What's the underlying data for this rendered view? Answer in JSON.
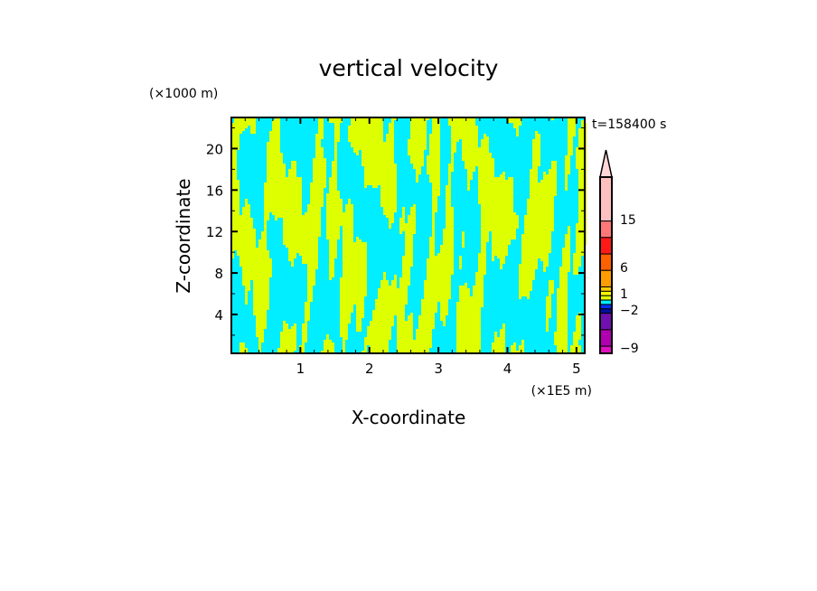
{
  "chart_data": {
    "type": "heatmap",
    "title": "vertical velocity",
    "xlabel": "X-coordinate",
    "ylabel": "Z-coordinate",
    "x_unit": "(×1E5 m)",
    "y_unit": "(×1000 m)",
    "time_label": "t=158400 s",
    "xlim": [
      0,
      5.12
    ],
    "ylim": [
      0.25,
      23
    ],
    "x_ticks": [
      "1",
      "2",
      "3",
      "4",
      "5"
    ],
    "x_tick_values": [
      1,
      2,
      3,
      4,
      5
    ],
    "y_ticks": [
      "4",
      "8",
      "12",
      "16",
      "20"
    ],
    "y_tick_values": [
      4,
      8,
      12,
      16,
      20
    ],
    "dominant_field_colors": {
      "positive": "#ddff00",
      "negative": "#00eeff"
    },
    "colorbar": {
      "labels": [
        "15",
        "6",
        "1",
        "−2",
        "−9"
      ],
      "label_values": [
        15,
        6,
        1,
        -2,
        -9
      ],
      "extend_color": "#ffd6d6",
      "segments_top_to_bottom": [
        {
          "color": "#ffc0c0",
          "weight": 8
        },
        {
          "color": "#ff7878",
          "weight": 3
        },
        {
          "color": "#ff1818",
          "weight": 3
        },
        {
          "color": "#ff6000",
          "weight": 3
        },
        {
          "color": "#ff9c00",
          "weight": 3
        },
        {
          "color": "#ffcc00",
          "weight": 0.8
        },
        {
          "color": "#ffff00",
          "weight": 0.8
        },
        {
          "color": "#ddff00",
          "weight": 0.8
        },
        {
          "color": "#00eeff",
          "weight": 0.8
        },
        {
          "color": "#0030ff",
          "weight": 0.8
        },
        {
          "color": "#0010a0",
          "weight": 0.8
        },
        {
          "color": "#7010b0",
          "weight": 3
        },
        {
          "color": "#b000b0",
          "weight": 3
        },
        {
          "color": "#e010c0",
          "weight": 1.3
        }
      ]
    }
  }
}
